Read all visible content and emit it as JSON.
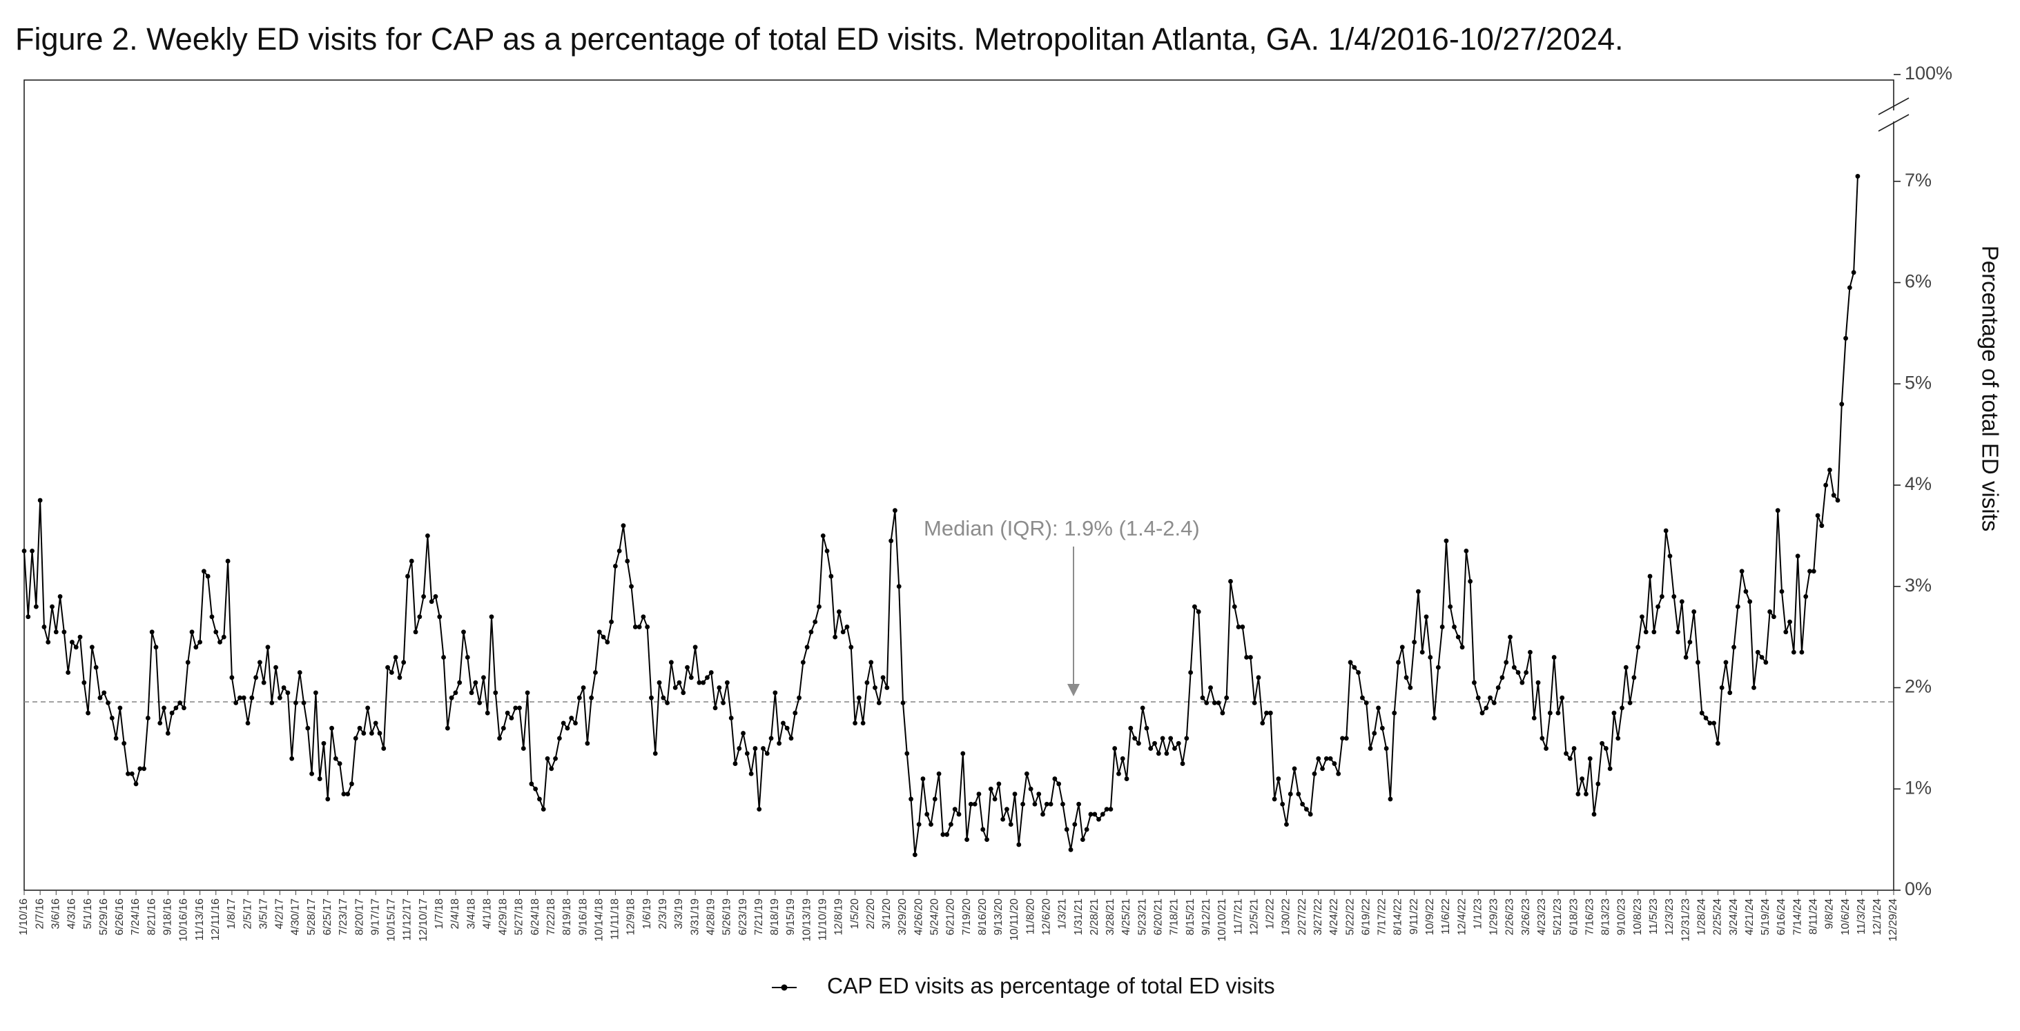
{
  "chart_data": {
    "type": "line",
    "title": "Figure 2. Weekly ED visits for CAP as a percentage of total ED visits. Metropolitan Atlanta, GA. 1/4/2016-10/27/2024.",
    "y_label": "Percentage of total ED visits",
    "categories": [
      "1/10/16",
      null,
      null,
      null,
      "2/7/16",
      null,
      null,
      null,
      "3/6/16",
      null,
      null,
      null,
      "4/3/16",
      null,
      null,
      null,
      "5/1/16",
      null,
      null,
      null,
      "5/29/16",
      null,
      null,
      null,
      "6/26/16",
      null,
      null,
      null,
      "7/24/16",
      null,
      null,
      null,
      "8/21/16",
      null,
      null,
      null,
      "9/18/16",
      null,
      null,
      null,
      "10/16/16",
      null,
      null,
      null,
      "11/13/16",
      null,
      null,
      null,
      "12/11/16",
      null,
      null,
      null,
      "1/8/17",
      null,
      null,
      null,
      "2/5/17",
      null,
      null,
      null,
      "3/5/17",
      null,
      null,
      null,
      "4/2/17",
      null,
      null,
      null,
      "4/30/17",
      null,
      null,
      null,
      "5/28/17",
      null,
      null,
      null,
      "6/25/17",
      null,
      null,
      null,
      "7/23/17",
      null,
      null,
      null,
      "8/20/17",
      null,
      null,
      null,
      "9/17/17",
      null,
      null,
      null,
      "10/15/17",
      null,
      null,
      null,
      "11/12/17",
      null,
      null,
      null,
      "12/10/17",
      null,
      null,
      null,
      "1/7/18",
      null,
      null,
      null,
      "2/4/18",
      null,
      null,
      null,
      "3/4/18",
      null,
      null,
      null,
      "4/1/18",
      null,
      null,
      null,
      "4/29/18",
      null,
      null,
      null,
      "5/27/18",
      null,
      null,
      null,
      "6/24/18",
      null,
      null,
      null,
      "7/22/18",
      null,
      null,
      null,
      "8/19/18",
      null,
      null,
      null,
      "9/16/18",
      null,
      null,
      null,
      "10/14/18",
      null,
      null,
      null,
      "11/11/18",
      null,
      null,
      null,
      "12/9/18",
      null,
      null,
      null,
      "1/6/19",
      null,
      null,
      null,
      "2/3/19",
      null,
      null,
      null,
      "3/3/19",
      null,
      null,
      null,
      "3/31/19",
      null,
      null,
      null,
      "4/28/19",
      null,
      null,
      null,
      "5/26/19",
      null,
      null,
      null,
      "6/23/19",
      null,
      null,
      null,
      "7/21/19",
      null,
      null,
      null,
      "8/18/19",
      null,
      null,
      null,
      "9/15/19",
      null,
      null,
      null,
      "10/13/19",
      null,
      null,
      null,
      "11/10/19",
      null,
      null,
      null,
      "12/8/19",
      null,
      null,
      null,
      "1/5/20",
      null,
      null,
      null,
      "2/2/20",
      null,
      null,
      null,
      "3/1/20",
      null,
      null,
      null,
      "3/29/20",
      null,
      null,
      null,
      "4/26/20",
      null,
      null,
      null,
      "5/24/20",
      null,
      null,
      null,
      "6/21/20",
      null,
      null,
      null,
      "7/19/20",
      null,
      null,
      null,
      "8/16/20",
      null,
      null,
      null,
      "9/13/20",
      null,
      null,
      null,
      "10/11/20",
      null,
      null,
      null,
      "11/8/20",
      null,
      null,
      null,
      "12/6/20",
      null,
      null,
      null,
      "1/3/21",
      null,
      null,
      null,
      "1/31/21",
      null,
      null,
      null,
      "2/28/21",
      null,
      null,
      null,
      "3/28/21",
      null,
      null,
      null,
      "4/25/21",
      null,
      null,
      null,
      "5/23/21",
      null,
      null,
      null,
      "6/20/21",
      null,
      null,
      null,
      "7/18/21",
      null,
      null,
      null,
      "8/15/21",
      null,
      null,
      null,
      "9/12/21",
      null,
      null,
      null,
      "10/10/21",
      null,
      null,
      null,
      "11/7/21",
      null,
      null,
      null,
      "12/5/21",
      null,
      null,
      null,
      "1/2/22",
      null,
      null,
      null,
      "1/30/22",
      null,
      null,
      null,
      "2/27/22",
      null,
      null,
      null,
      "3/27/22",
      null,
      null,
      null,
      "4/24/22",
      null,
      null,
      null,
      "5/22/22",
      null,
      null,
      null,
      "6/19/22",
      null,
      null,
      null,
      "7/17/22",
      null,
      null,
      null,
      "8/14/22",
      null,
      null,
      null,
      "9/11/22",
      null,
      null,
      null,
      "10/9/22",
      null,
      null,
      null,
      "11/6/22",
      null,
      null,
      null,
      "12/4/22",
      null,
      null,
      null,
      "1/1/23",
      null,
      null,
      null,
      "1/29/23",
      null,
      null,
      null,
      "2/26/23",
      null,
      null,
      null,
      "3/26/23",
      null,
      null,
      null,
      "4/23/23",
      null,
      null,
      null,
      "5/21/23",
      null,
      null,
      null,
      "6/18/23",
      null,
      null,
      null,
      "7/16/23",
      null,
      null,
      null,
      "8/13/23",
      null,
      null,
      null,
      "9/10/23",
      null,
      null,
      null,
      "10/8/23",
      null,
      null,
      null,
      "11/5/23",
      null,
      null,
      null,
      "12/3/23",
      null,
      null,
      null,
      "12/31/23",
      null,
      null,
      null,
      "1/28/24",
      null,
      null,
      null,
      "2/25/24",
      null,
      null,
      null,
      "3/24/24",
      null,
      null,
      null,
      "4/21/24",
      null,
      null,
      null,
      "5/19/24",
      null,
      null,
      null,
      "6/16/24",
      null,
      null,
      null,
      "7/14/24",
      null,
      null,
      null,
      "8/11/24",
      null,
      null,
      null,
      "9/8/24",
      null,
      null,
      null,
      "10/6/24",
      null,
      null,
      null,
      "11/3/24",
      null,
      null,
      null,
      "12/1/24",
      null,
      null,
      null,
      "12/29/24"
    ],
    "series": [
      {
        "name": "CAP ED visits as percentage of total ED visits",
        "color": "#000000",
        "values": [
          3.35,
          2.7,
          3.35,
          2.8,
          3.85,
          2.6,
          2.45,
          2.8,
          2.55,
          2.9,
          2.55,
          2.15,
          2.45,
          2.4,
          2.5,
          2.05,
          1.75,
          2.4,
          2.2,
          1.9,
          1.95,
          1.85,
          1.7,
          1.5,
          1.8,
          1.45,
          1.15,
          1.15,
          1.05,
          1.2,
          1.2,
          1.7,
          2.55,
          2.4,
          1.65,
          1.8,
          1.55,
          1.75,
          1.8,
          1.85,
          1.8,
          2.25,
          2.55,
          2.4,
          2.45,
          3.15,
          3.1,
          2.7,
          2.55,
          2.45,
          2.5,
          3.25,
          2.1,
          1.85,
          1.9,
          1.9,
          1.65,
          1.9,
          2.1,
          2.25,
          2.05,
          2.4,
          1.85,
          2.2,
          1.9,
          2.0,
          1.95,
          1.3,
          1.85,
          2.15,
          1.85,
          1.6,
          1.15,
          1.95,
          1.1,
          1.45,
          0.9,
          1.6,
          1.3,
          1.25,
          0.95,
          0.95,
          1.05,
          1.5,
          1.6,
          1.55,
          1.8,
          1.55,
          1.65,
          1.55,
          1.4,
          2.2,
          2.15,
          2.3,
          2.1,
          2.25,
          3.1,
          3.25,
          2.55,
          2.7,
          2.9,
          3.5,
          2.85,
          2.9,
          2.7,
          2.3,
          1.6,
          1.9,
          1.95,
          2.05,
          2.55,
          2.3,
          1.95,
          2.05,
          1.85,
          2.1,
          1.75,
          2.7,
          1.95,
          1.5,
          1.6,
          1.75,
          1.7,
          1.8,
          1.8,
          1.4,
          1.95,
          1.05,
          1.0,
          0.9,
          0.8,
          1.3,
          1.2,
          1.3,
          1.5,
          1.65,
          1.6,
          1.7,
          1.65,
          1.9,
          2.0,
          1.45,
          1.9,
          2.15,
          2.55,
          2.5,
          2.45,
          2.65,
          3.2,
          3.35,
          3.6,
          3.25,
          3.0,
          2.6,
          2.6,
          2.7,
          2.6,
          1.9,
          1.35,
          2.05,
          1.9,
          1.85,
          2.25,
          2.0,
          2.05,
          1.95,
          2.2,
          2.1,
          2.4,
          2.05,
          2.05,
          2.1,
          2.15,
          1.8,
          2.0,
          1.85,
          2.05,
          1.7,
          1.25,
          1.4,
          1.55,
          1.35,
          1.15,
          1.4,
          0.8,
          1.4,
          1.35,
          1.5,
          1.95,
          1.45,
          1.65,
          1.6,
          1.5,
          1.75,
          1.9,
          2.25,
          2.4,
          2.55,
          2.65,
          2.8,
          3.5,
          3.35,
          3.1,
          2.5,
          2.75,
          2.55,
          2.6,
          2.4,
          1.65,
          1.9,
          1.65,
          2.05,
          2.25,
          2.0,
          1.85,
          2.1,
          2.0,
          3.45,
          3.75,
          3.0,
          1.85,
          1.35,
          0.9,
          0.35,
          0.65,
          1.1,
          0.75,
          0.65,
          0.9,
          1.15,
          0.55,
          0.55,
          0.65,
          0.8,
          0.75,
          1.35,
          0.5,
          0.85,
          0.85,
          0.95,
          0.6,
          0.5,
          1.0,
          0.9,
          1.05,
          0.7,
          0.8,
          0.65,
          0.95,
          0.45,
          0.85,
          1.15,
          1.0,
          0.85,
          0.95,
          0.75,
          0.85,
          0.85,
          1.1,
          1.05,
          0.85,
          0.6,
          0.4,
          0.65,
          0.85,
          0.5,
          0.6,
          0.75,
          0.75,
          0.7,
          0.75,
          0.8,
          0.8,
          1.4,
          1.15,
          1.3,
          1.1,
          1.6,
          1.5,
          1.45,
          1.8,
          1.6,
          1.4,
          1.45,
          1.35,
          1.5,
          1.35,
          1.5,
          1.4,
          1.45,
          1.25,
          1.5,
          2.15,
          2.8,
          2.75,
          1.9,
          1.85,
          2.0,
          1.85,
          1.85,
          1.75,
          1.9,
          3.05,
          2.8,
          2.6,
          2.6,
          2.3,
          2.3,
          1.85,
          2.1,
          1.65,
          1.75,
          1.75,
          0.9,
          1.1,
          0.85,
          0.65,
          0.95,
          1.2,
          0.95,
          0.85,
          0.8,
          0.75,
          1.15,
          1.3,
          1.2,
          1.3,
          1.3,
          1.25,
          1.15,
          1.5,
          1.5,
          2.25,
          2.2,
          2.15,
          1.9,
          1.85,
          1.4,
          1.55,
          1.8,
          1.6,
          1.4,
          0.9,
          1.75,
          2.25,
          2.4,
          2.1,
          2.0,
          2.45,
          2.95,
          2.35,
          2.7,
          2.3,
          1.7,
          2.2,
          2.6,
          3.45,
          2.8,
          2.6,
          2.5,
          2.4,
          3.35,
          3.05,
          2.05,
          1.9,
          1.75,
          1.8,
          1.9,
          1.85,
          2.0,
          2.1,
          2.25,
          2.5,
          2.2,
          2.15,
          2.05,
          2.15,
          2.35,
          1.7,
          2.05,
          1.5,
          1.4,
          1.75,
          2.3,
          1.75,
          1.9,
          1.35,
          1.3,
          1.4,
          0.95,
          1.1,
          0.95,
          1.3,
          0.75,
          1.05,
          1.45,
          1.4,
          1.2,
          1.75,
          1.5,
          1.8,
          2.2,
          1.85,
          2.1,
          2.4,
          2.7,
          2.55,
          3.1,
          2.55,
          2.8,
          2.9,
          3.55,
          3.3,
          2.9,
          2.55,
          2.85,
          2.3,
          2.45,
          2.75,
          2.25,
          1.75,
          1.7,
          1.65,
          1.65,
          1.45,
          2.0,
          2.25,
          1.95,
          2.4,
          2.8,
          3.15,
          2.95,
          2.85,
          2.0,
          2.35,
          2.3,
          2.25,
          2.75,
          2.7,
          3.75,
          2.95,
          2.55,
          2.65,
          2.35,
          3.3,
          2.35,
          2.9,
          3.15,
          3.15,
          3.7,
          3.6,
          4.0,
          4.15,
          3.9,
          3.85,
          4.8,
          5.45,
          5.95,
          6.1,
          7.05,
          null,
          null,
          null,
          null,
          null,
          null,
          null,
          null,
          null
        ]
      }
    ],
    "ylim": [
      0,
      8
    ],
    "yticks": [
      {
        "value": 0,
        "label": "0%"
      },
      {
        "value": 1,
        "label": "1%"
      },
      {
        "value": 2,
        "label": "2%"
      },
      {
        "value": 3,
        "label": "3%"
      },
      {
        "value": 4,
        "label": "4%"
      },
      {
        "value": 5,
        "label": "5%"
      },
      {
        "value": 6,
        "label": "6%"
      },
      {
        "value": 7,
        "label": "7%"
      },
      {
        "value": 100,
        "label": "100%"
      }
    ],
    "axis_break": true,
    "y_axis_side": "right",
    "median_line": {
      "value": 1.86,
      "label": "Median (IQR): 1.9% (1.4-2.4)",
      "color": "#8c8c8c"
    },
    "legend": "bottom"
  }
}
